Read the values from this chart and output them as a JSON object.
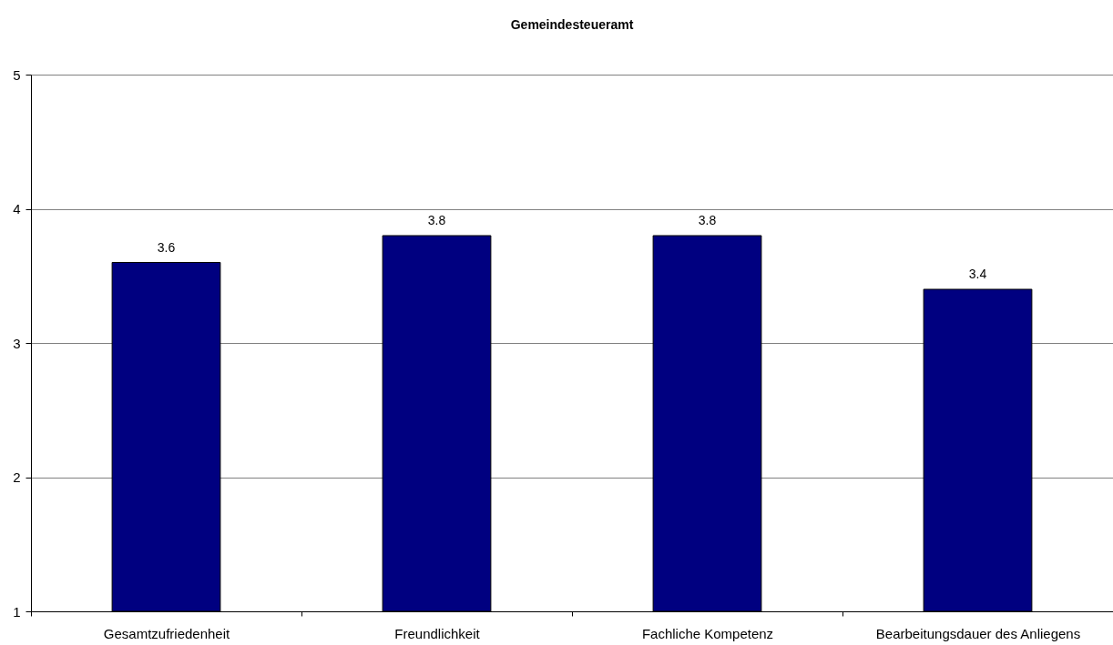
{
  "chart_data": {
    "type": "bar",
    "title": "Gemeindesteueramt",
    "categories": [
      "Gesamtzufriedenheit",
      "Freundlichkeit",
      "Fachliche Kompetenz",
      "Bearbeitungsdauer des Anliegens"
    ],
    "values": [
      3.6,
      3.8,
      3.8,
      3.4
    ],
    "color": "#000080",
    "ylim": [
      1,
      5
    ],
    "yticks": [
      1,
      2,
      3,
      4,
      5
    ],
    "grid": "y",
    "data_labels": true
  }
}
